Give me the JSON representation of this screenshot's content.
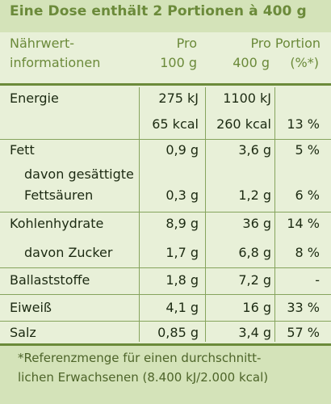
{
  "header": {
    "title": "Eine Dose enthält 2 Portionen à 400 g",
    "col_name_1": "Nährwert-",
    "col_name_2": "informationen",
    "col_100_1": "Pro",
    "col_100_2": "100 g",
    "col_portion_1": "Pro Portion",
    "col_portion_2": "400 g",
    "col_pct": "(%*)"
  },
  "rows": [
    {
      "name": "Energie",
      "v100": "275 kJ",
      "vportion": "1100 kJ",
      "pct": ""
    },
    {
      "name": "",
      "v100": "65 kcal",
      "vportion": "260 kcal",
      "pct": "13 %"
    },
    {
      "name": "Fett",
      "v100": "0,9 g",
      "vportion": "3,6 g",
      "pct": "5 %"
    },
    {
      "name_1": "davon gesättigte",
      "name_2": "Fettsäuren",
      "v100": "0,3 g",
      "vportion": "1,2 g",
      "pct": "6 %"
    },
    {
      "name": "Kohlenhydrate",
      "v100": "8,9 g",
      "vportion": "36 g",
      "pct": "14 %"
    },
    {
      "name": "davon Zucker",
      "v100": "1,7 g",
      "vportion": "6,8 g",
      "pct": "8 %"
    },
    {
      "name": "Ballaststoffe",
      "v100": "1,8 g",
      "vportion": "7,2 g",
      "pct": "-"
    },
    {
      "name": "Eiweiß",
      "v100": "4,1 g",
      "vportion": "16 g",
      "pct": "33 %"
    },
    {
      "name": "Salz",
      "v100": "0,85 g",
      "vportion": "3,4 g",
      "pct": "57 %"
    }
  ],
  "footnote": {
    "line_1": "*Referenzmenge für einen durchschnitt-",
    "line_2": "lichen Erwachsenen (8.400 kJ/2.000 kcal)"
  },
  "colors": {
    "accent_green": "#6b8a3a",
    "label_bg": "#e8f0d8",
    "band_bg": "#d4e3b9"
  }
}
